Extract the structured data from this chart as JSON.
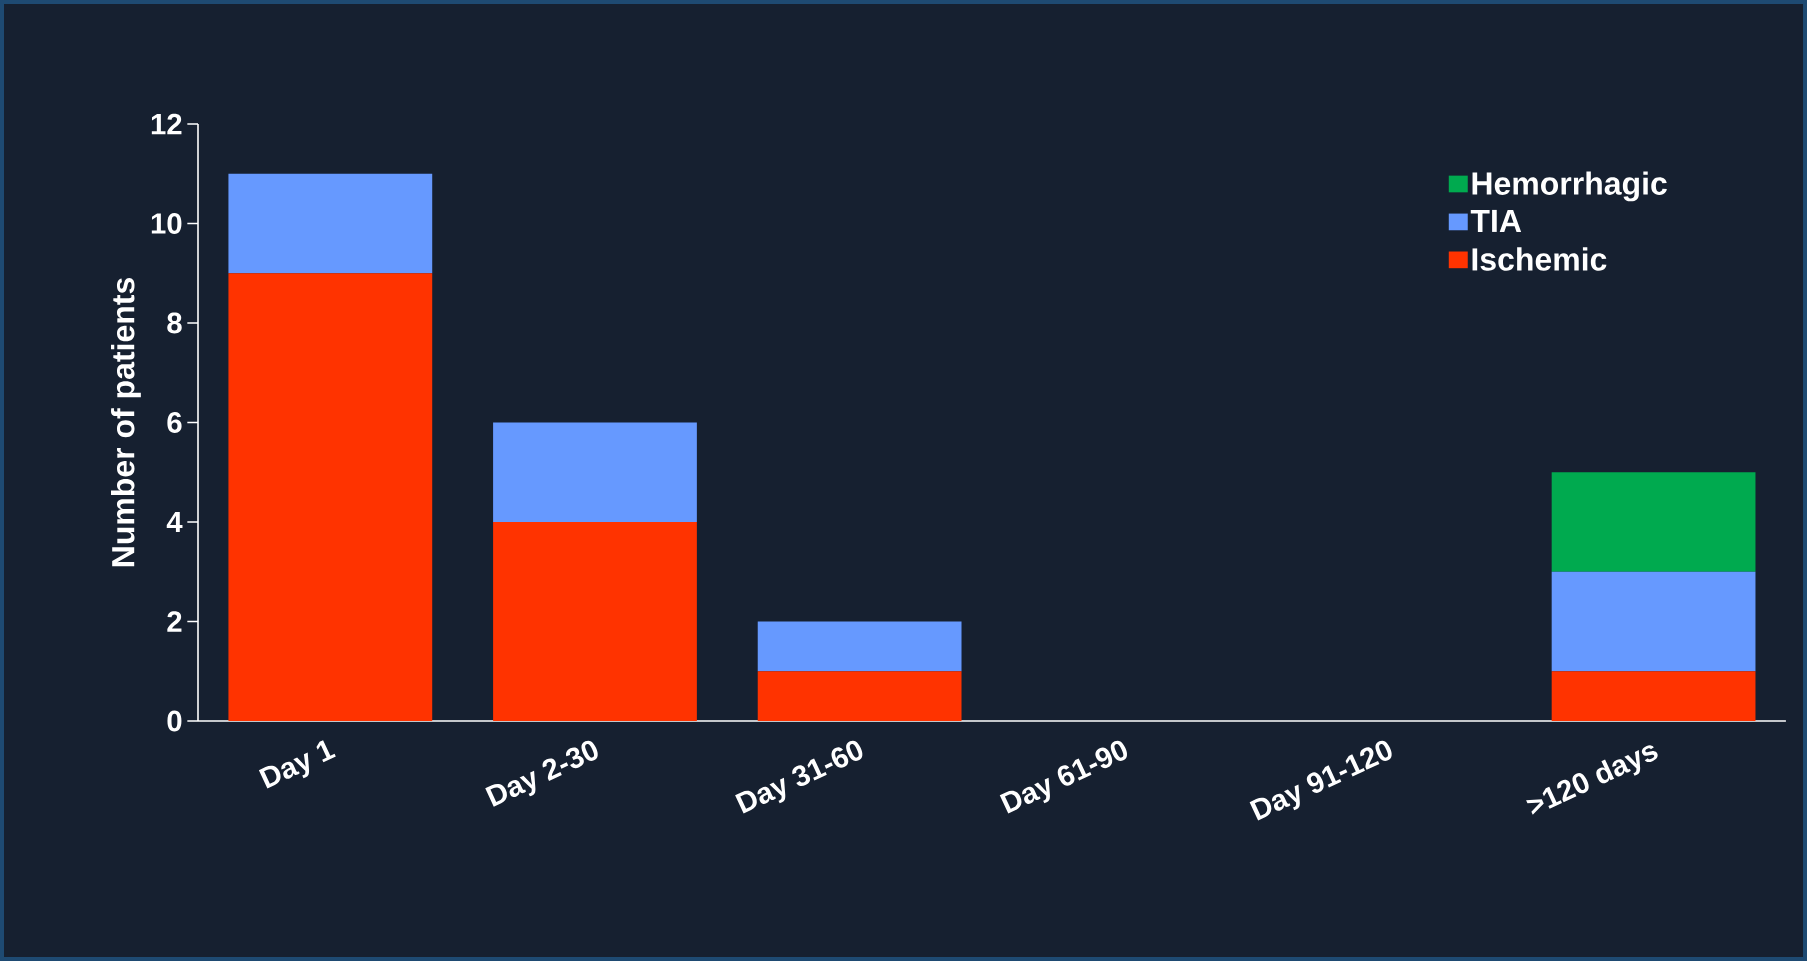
{
  "chart_data": {
    "type": "bar",
    "stacked": true,
    "ylabel": "Number of patients",
    "categories": [
      "Day 1",
      "Day 2-30",
      "Day 31-60",
      "Day 61-90",
      "Day 91-120",
      ">120 days"
    ],
    "series": [
      {
        "name": "Ischemic",
        "color": "#ff3300",
        "values": [
          9,
          4,
          1,
          0,
          0,
          1
        ]
      },
      {
        "name": "TIA",
        "color": "#6699ff",
        "values": [
          2,
          2,
          1,
          0,
          0,
          2
        ]
      },
      {
        "name": "Hemorrhagic",
        "color": "#00aa4f",
        "values": [
          0,
          0,
          0,
          0,
          0,
          2
        ]
      }
    ],
    "ylim": [
      0,
      12
    ],
    "yticks": [
      0,
      2,
      4,
      6,
      8,
      10,
      12
    ],
    "grid": false,
    "legend": "top right"
  }
}
